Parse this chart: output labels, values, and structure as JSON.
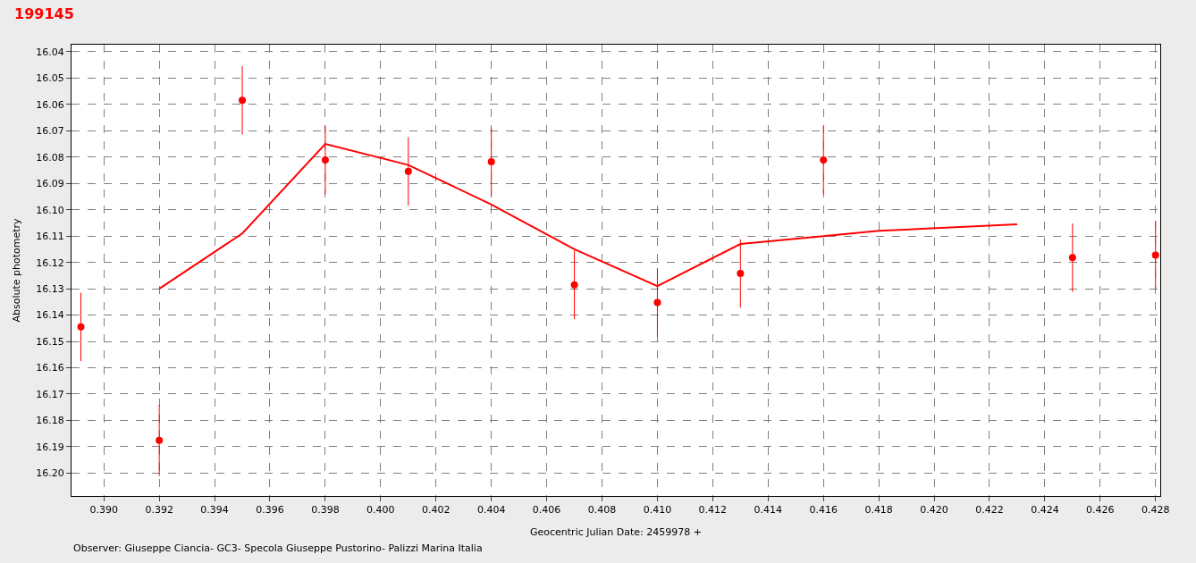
{
  "chart_data": {
    "type": "scatter",
    "title": "199145",
    "xlabel": "Geocentric Julian Date: 2459978 +",
    "ylabel": "Absolute photometry",
    "annotations": [
      "Observer: Giuseppe Ciancia- GC3- Specola Giuseppe Pustorino- Palizzi Marina Italia"
    ],
    "series": [
      {
        "color": "#ff0000",
        "marker": "circle",
        "x": [
          0.38917,
          0.392,
          0.395,
          0.398,
          0.401,
          0.404,
          0.407,
          0.41,
          0.413,
          0.416,
          0.425,
          0.428
        ],
        "values": [
          16.1445,
          16.1876,
          16.0584,
          16.0811,
          16.0854,
          16.0818,
          16.1285,
          16.1352,
          16.1242,
          16.0811,
          16.1182,
          16.1172
        ],
        "errors": [
          0.013,
          0.0135,
          0.013,
          0.013,
          0.013,
          0.013,
          0.013,
          0.013,
          0.013,
          0.013,
          0.013,
          0.013
        ]
      },
      {
        "type": "line",
        "color": "#ff0000",
        "line_style": "solid",
        "x": [
          0.392,
          0.395,
          0.398,
          0.401,
          0.404,
          0.407,
          0.41,
          0.413,
          0.416,
          0.418,
          0.423
        ],
        "values": [
          16.13,
          16.109,
          16.075,
          16.083,
          16.098,
          16.115,
          16.129,
          16.113,
          16.11,
          16.108,
          16.1055
        ]
      }
    ],
    "xlim": [
      0.38883,
      0.42817
    ],
    "xticks": [
      {
        "value": 0.39,
        "label": "0.390"
      },
      {
        "value": 0.392,
        "label": "0.392"
      },
      {
        "value": 0.394,
        "label": "0.394"
      },
      {
        "value": 0.396,
        "label": "0.396"
      },
      {
        "value": 0.398,
        "label": "0.398"
      },
      {
        "value": 0.4,
        "label": "0.400"
      },
      {
        "value": 0.402,
        "label": "0.402"
      },
      {
        "value": 0.404,
        "label": "0.404"
      },
      {
        "value": 0.406,
        "label": "0.406"
      },
      {
        "value": 0.408,
        "label": "0.408"
      },
      {
        "value": 0.41,
        "label": "0.410"
      },
      {
        "value": 0.412,
        "label": "0.412"
      },
      {
        "value": 0.414,
        "label": "0.414"
      },
      {
        "value": 0.416,
        "label": "0.416"
      },
      {
        "value": 0.418,
        "label": "0.418"
      },
      {
        "value": 0.42,
        "label": "0.420"
      },
      {
        "value": 0.422,
        "label": "0.422"
      },
      {
        "value": 0.424,
        "label": "0.424"
      },
      {
        "value": 0.426,
        "label": "0.426"
      },
      {
        "value": 0.428,
        "label": "0.428"
      }
    ],
    "ylim": [
      16.2087,
      16.0373
    ],
    "yticks": [
      16.04,
      16.05,
      16.06,
      16.07,
      16.08,
      16.09,
      {
        "value": 16.1,
        "label": "16.10"
      },
      16.11,
      16.12,
      16.13,
      16.14,
      16.15,
      16.16,
      16.17,
      16.18,
      16.19,
      {
        "value": 16.2,
        "label": "16.20"
      }
    ],
    "grid": true
  }
}
